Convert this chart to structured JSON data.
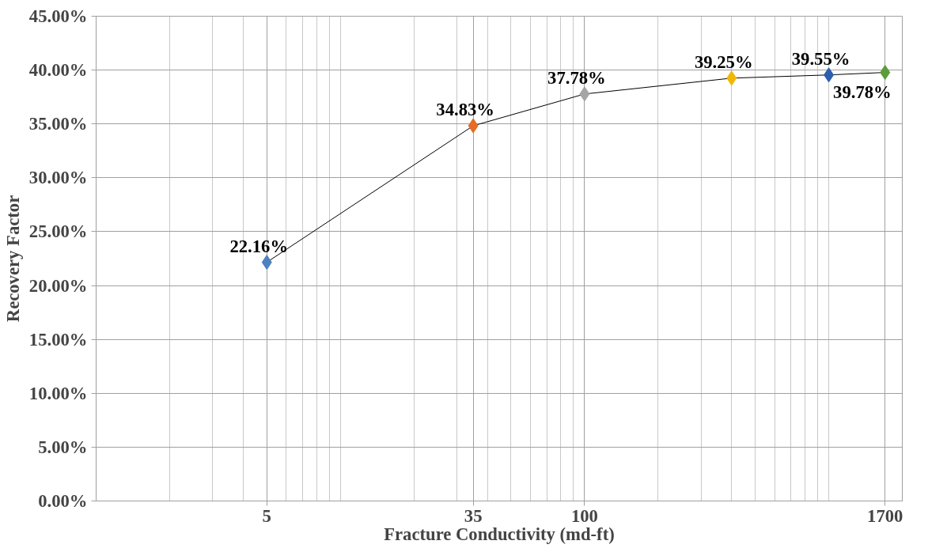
{
  "chart_data": {
    "type": "line",
    "xlabel": "Fracture Conductivity (md-ft)",
    "ylabel": "Recovery Factor",
    "log": "x",
    "x": [
      5,
      35,
      100,
      400,
      1000,
      1700
    ],
    "series": [
      {
        "color": "#000000",
        "colors": [
          "#4f81bd",
          "#e46c24",
          "#a5a5a5",
          "#f2b705",
          "#2e5fae",
          "#5b9b3a"
        ],
        "values": [
          22.16,
          34.83,
          37.78,
          39.25,
          39.55,
          39.78
        ],
        "value_labels": [
          "22.16%",
          "34.83%",
          "37.78%",
          "39.25%",
          "39.55%",
          "39.78%"
        ]
      }
    ],
    "xlim": [
      1,
      2000
    ],
    "xticks": [
      5,
      35,
      100,
      1700
    ],
    "ylim": [
      0,
      45
    ],
    "yticks": [
      {
        "value": 0,
        "label": "0.00%"
      },
      {
        "value": 5,
        "label": "5.00%"
      },
      {
        "value": 10,
        "label": "10.00%"
      },
      {
        "value": 15,
        "label": "15.00%"
      },
      {
        "value": 20,
        "label": "20.00%"
      },
      {
        "value": 25,
        "label": "25.00%"
      },
      {
        "value": 30,
        "label": "30.00%"
      },
      {
        "value": 35,
        "label": "35.00%"
      },
      {
        "value": 40,
        "label": "40.00%"
      },
      {
        "value": 45,
        "label": "45.00%"
      }
    ],
    "grid": true,
    "marker": "diamond",
    "line_style": "solid"
  }
}
